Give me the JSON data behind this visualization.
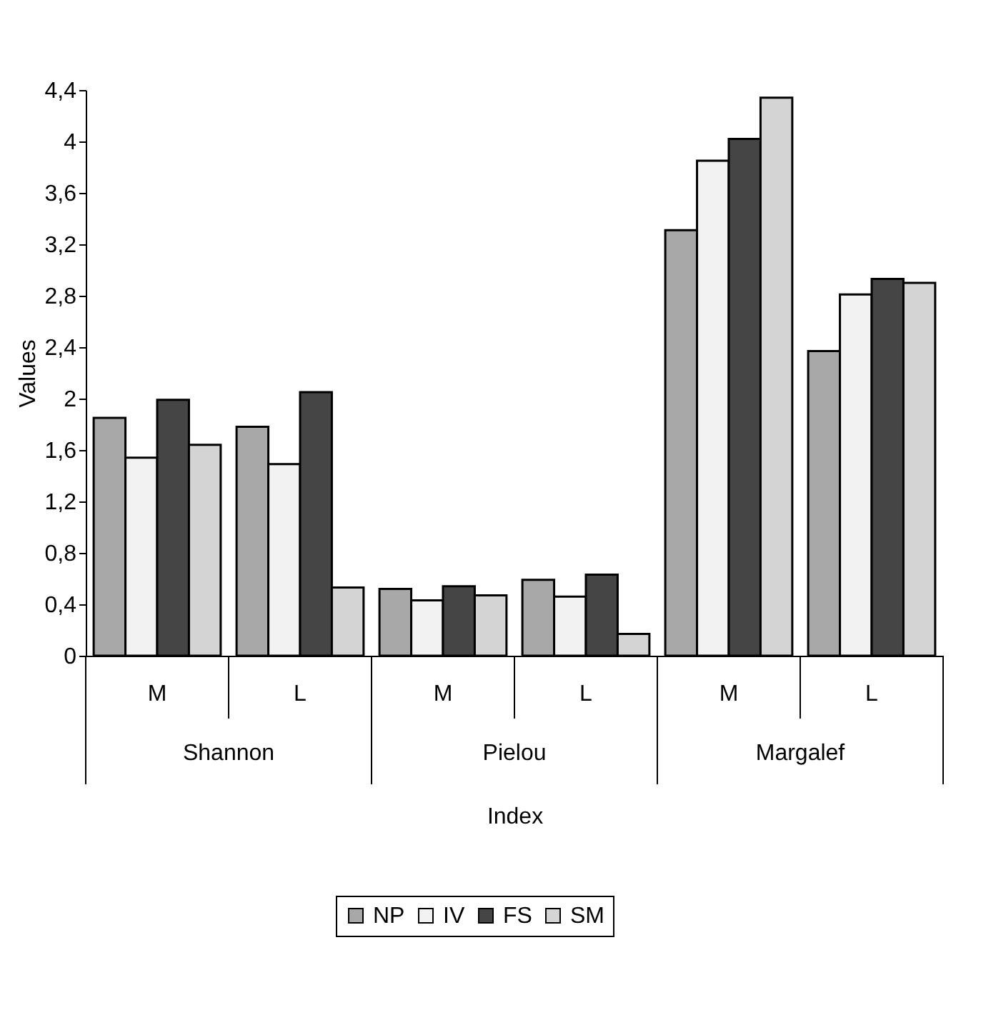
{
  "chart_data": {
    "type": "bar",
    "xlabel": "Index",
    "ylabel": "Values",
    "categories": [
      "M",
      "L",
      "M",
      "L",
      "M",
      "L"
    ],
    "annotations": [
      "Shannon",
      "Pielou",
      "Margalef"
    ],
    "series": [
      {
        "name": "NP",
        "color": "#a8a8a8",
        "values": [
          1.85,
          1.78,
          0.52,
          0.59,
          3.31,
          2.37
        ]
      },
      {
        "name": "IV",
        "color": "#f2f2f2",
        "values": [
          1.54,
          1.49,
          0.43,
          0.46,
          3.85,
          2.81
        ]
      },
      {
        "name": "FS",
        "color": "#454545",
        "values": [
          1.99,
          2.05,
          0.54,
          0.63,
          4.02,
          2.93
        ]
      },
      {
        "name": "SM",
        "color": "#d4d4d4",
        "values": [
          1.64,
          0.53,
          0.47,
          0.17,
          4.34,
          2.9
        ]
      }
    ],
    "ylim": [
      0,
      4.4
    ],
    "yticks": [
      0,
      {
        "value": 0.4,
        "label": "0,4"
      },
      {
        "value": 0.8,
        "label": "0,8"
      },
      {
        "value": 1.2,
        "label": "1,2"
      },
      {
        "value": 1.6,
        "label": "1,6"
      },
      2,
      {
        "value": 2.4,
        "label": "2,4"
      },
      {
        "value": 2.8,
        "label": "2,8"
      },
      {
        "value": 3.2,
        "label": "3,2"
      },
      {
        "value": 3.6,
        "label": "3,6"
      },
      4,
      {
        "value": 4.4,
        "label": "4,4"
      }
    ],
    "grid": false,
    "legend": "bottom"
  }
}
